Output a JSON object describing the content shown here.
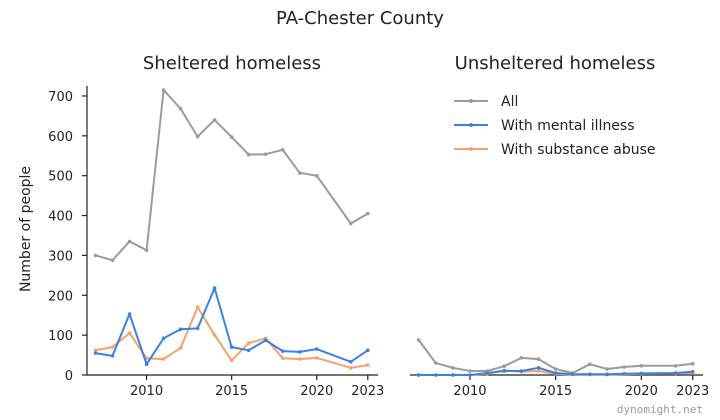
{
  "figure": {
    "title": "PA-Chester County",
    "watermark": "dynomight.net"
  },
  "colors": {
    "All": "#9b9b9b",
    "With mental illness": "#3b82e0",
    "With substance abuse": "#f7a06a"
  },
  "chart_data": [
    {
      "type": "line",
      "title": "Sheltered homeless",
      "xlabel": "",
      "ylabel": "Number of people",
      "xlim": [
        2006.5,
        2023.6
      ],
      "ylim": [
        0,
        720
      ],
      "xticks": [
        2010,
        2015,
        2020,
        2023
      ],
      "yticks": [
        0,
        100,
        200,
        300,
        400,
        500,
        600,
        700
      ],
      "x": [
        2007,
        2008,
        2009,
        2010,
        2011,
        2012,
        2013,
        2014,
        2015,
        2016,
        2017,
        2018,
        2019,
        2020,
        2022,
        2023
      ],
      "series": [
        {
          "name": "All",
          "values": [
            300,
            288,
            335,
            313,
            715,
            668,
            598,
            640,
            597,
            553,
            554,
            565,
            507,
            500,
            380,
            405
          ]
        },
        {
          "name": "With mental illness",
          "values": [
            55,
            48,
            153,
            27,
            92,
            115,
            117,
            218,
            70,
            62,
            87,
            60,
            58,
            65,
            33,
            62
          ]
        },
        {
          "name": "With substance abuse",
          "values": [
            62,
            70,
            105,
            42,
            40,
            68,
            170,
            100,
            37,
            80,
            92,
            42,
            40,
            43,
            18,
            25
          ]
        }
      ]
    },
    {
      "type": "line",
      "title": "Unsheltered homeless",
      "xlabel": "",
      "ylabel": "",
      "xlim": [
        2006.5,
        2023.6
      ],
      "ylim": [
        0,
        720
      ],
      "xticks": [
        2010,
        2015,
        2020,
        2023
      ],
      "x": [
        2007,
        2008,
        2009,
        2010,
        2011,
        2012,
        2013,
        2014,
        2015,
        2016,
        2017,
        2018,
        2019,
        2020,
        2022,
        2023
      ],
      "series": [
        {
          "name": "All",
          "values": [
            88,
            30,
            18,
            10,
            10,
            22,
            43,
            40,
            15,
            5,
            27,
            15,
            20,
            23,
            23,
            28
          ]
        },
        {
          "name": "With mental illness",
          "values": [
            0,
            0,
            0,
            0,
            5,
            10,
            10,
            18,
            5,
            2,
            2,
            2,
            3,
            4,
            5,
            8
          ]
        },
        {
          "name": "With substance abuse",
          "values": [
            0,
            0,
            0,
            0,
            3,
            12,
            8,
            10,
            3,
            1,
            1,
            1,
            2,
            3,
            4,
            5
          ]
        }
      ],
      "legend": {
        "position": "upper-right",
        "entries": [
          "All",
          "With mental illness",
          "With substance abuse"
        ]
      }
    }
  ]
}
